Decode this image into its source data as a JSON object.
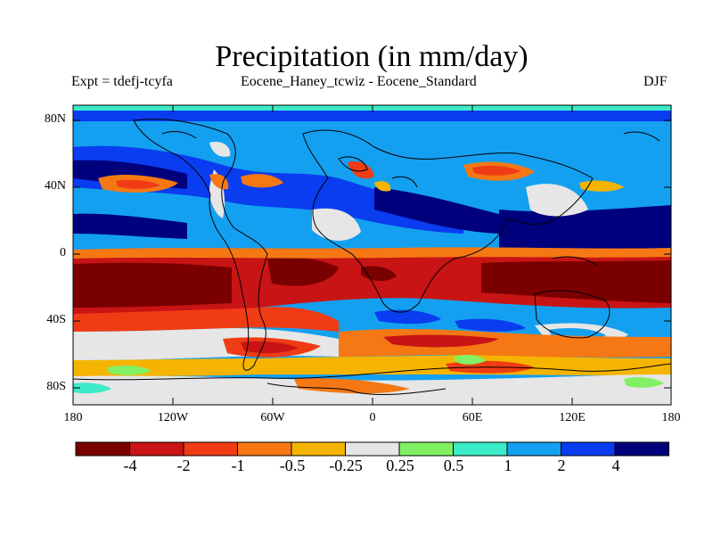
{
  "title": "Precipitation (in mm/day)",
  "subtitle_left": "Expt = tdefj-tcyfa",
  "subtitle_center": "Eocene_Haney_tcwiz - Eocene_Standard",
  "subtitle_right": "DJF",
  "lat_labels": [
    "80N",
    "40N",
    "0",
    "40S",
    "80S"
  ],
  "lon_labels": [
    "180",
    "120W",
    "60W",
    "0",
    "60E",
    "120E",
    "180"
  ],
  "colorbar": {
    "colors": [
      "#7a0000",
      "#c81414",
      "#f03c14",
      "#f57814",
      "#f5b400",
      "#e6e6e6",
      "#82f064",
      "#3cebc8",
      "#14a0f0",
      "#0a3cf0",
      "#00007d"
    ],
    "labels": [
      "-4",
      "-2",
      "-1",
      "-0.5",
      "-0.25",
      "0.25",
      "0.5",
      "1",
      "2",
      "4"
    ]
  }
}
